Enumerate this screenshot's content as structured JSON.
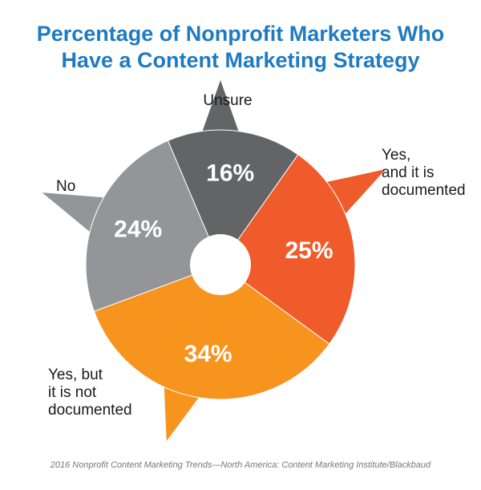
{
  "title_line1": "Percentage of Nonprofit Marketers Who",
  "title_line2": "Have a Content Marketing Strategy",
  "source": "2016 Nonprofit Content Marketing Trends—North America: Content Marketing Institute/Blackbaud",
  "chart_data": {
    "type": "pie",
    "title": "Percentage of Nonprofit Marketers Who Have a Content Marketing Strategy",
    "slices": [
      {
        "label_lines": [
          "Unsure"
        ],
        "value": 16,
        "display": "16%",
        "color": "#636466"
      },
      {
        "label_lines": [
          "Yes,",
          "and it is",
          "documented"
        ],
        "value": 25,
        "display": "25%",
        "color": "#ef5b2b"
      },
      {
        "label_lines": [
          "Yes, but",
          "it is not",
          "documented"
        ],
        "value": 34,
        "display": "34%",
        "color": "#f7941d"
      },
      {
        "label_lines": [
          "No"
        ],
        "value": 24,
        "display": "24%",
        "color": "#939598"
      }
    ]
  }
}
